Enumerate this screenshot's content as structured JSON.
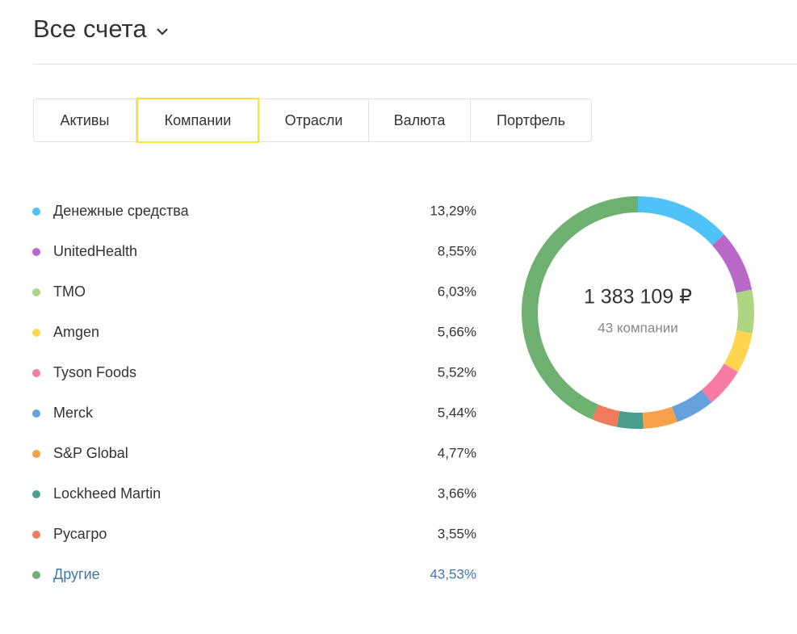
{
  "header": {
    "title": "Все счета"
  },
  "tabs": [
    "Активы",
    "Компании",
    "Отрасли",
    "Валюта",
    "Портфель"
  ],
  "selected_tab": 1,
  "chart_data": {
    "type": "pie",
    "categories": [
      "Денежные средства",
      "UnitedHealth",
      "TMO",
      "Amgen",
      "Tyson Foods",
      "Merck",
      "S&P Global",
      "Lockheed Martin",
      "Русагро",
      "Другие"
    ],
    "values": [
      13.29,
      8.55,
      6.03,
      5.66,
      5.52,
      5.44,
      4.77,
      3.66,
      3.55,
      43.53
    ],
    "value_labels": [
      "13,29%",
      "8,55%",
      "6,03%",
      "5,66%",
      "5,52%",
      "5,44%",
      "4,77%",
      "3,66%",
      "3,55%",
      "43,53%"
    ],
    "colors": [
      "#4fc3f7",
      "#ba68c8",
      "#aed581",
      "#ffd54f",
      "#f87ba6",
      "#64a1dc",
      "#f5a24b",
      "#4a9e8e",
      "#ef7c5c",
      "#6eb070"
    ],
    "center_title": "1 383 109 ₽",
    "center_subtitle": "43 компании"
  }
}
